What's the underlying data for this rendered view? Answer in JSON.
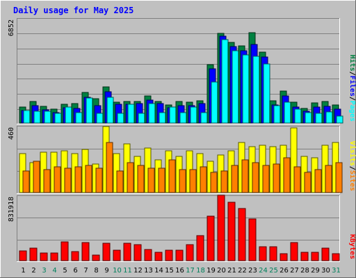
{
  "chart_data": {
    "type": "bar",
    "title": "Daily usage for May 2025",
    "categories": [
      "1",
      "2",
      "3",
      "4",
      "5",
      "6",
      "7",
      "8",
      "9",
      "10",
      "11",
      "12",
      "13",
      "14",
      "15",
      "16",
      "17",
      "18",
      "19",
      "20",
      "21",
      "22",
      "23",
      "24",
      "25",
      "26",
      "27",
      "28",
      "29",
      "30",
      "31"
    ],
    "weekend_days": [
      "3",
      "4",
      "10",
      "11",
      "17",
      "18",
      "24",
      "25",
      "31"
    ],
    "panels": [
      {
        "name": "top",
        "ymax_label": "6852",
        "ylim": [
          0,
          6852
        ],
        "legend": [
          "Pages",
          "Files",
          "Hits"
        ],
        "series": [
          {
            "name": "Hits",
            "color": "#008040",
            "values": [
              1050,
              1430,
              1080,
              900,
              1230,
              1290,
              2020,
              1580,
              2370,
              1380,
              1420,
              1430,
              1770,
              1400,
              1170,
              1430,
              1390,
              1480,
              3830,
              5900,
              5290,
              5080,
              5930,
              4680,
              1440,
              2120,
              1370,
              950,
              1340,
              1420,
              1200
            ]
          },
          {
            "name": "Files",
            "color": "#0000ff",
            "values": [
              820,
              1140,
              880,
              680,
              1000,
              980,
              1700,
              1160,
              2050,
              1220,
              1220,
              1280,
              1530,
              1260,
              1000,
              1150,
              1130,
              1270,
              3560,
              5720,
              5030,
              4760,
              5150,
              4360,
              1170,
              1790,
              1030,
              780,
              1060,
              1110,
              900
            ]
          },
          {
            "name": "Pages",
            "color": "#00ffff",
            "values": [
              820,
              770,
              770,
              660,
              1050,
              680,
              1660,
              650,
              1680,
              660,
              1220,
              660,
              1290,
              700,
              1040,
              700,
              1050,
              700,
              2690,
              5460,
              4760,
              4470,
              4370,
              3890,
              1130,
              1380,
              910,
              680,
              640,
              720,
              470
            ]
          }
        ]
      },
      {
        "name": "middle",
        "ymax_label": "460",
        "ylim": [
          0,
          460
        ],
        "legend": [
          "Sites",
          "Visits"
        ],
        "series": [
          {
            "name": "Visits",
            "color": "#ffff00",
            "values": [
              270,
              210,
              280,
              280,
              290,
              270,
              300,
              200,
              460,
              270,
              340,
              250,
              310,
              230,
              290,
              250,
              290,
              270,
              220,
              260,
              290,
              350,
              320,
              330,
              320,
              330,
              450,
              250,
              240,
              330,
              350
            ]
          },
          {
            "name": "Sites",
            "color": "#ff8000",
            "values": [
              150,
              220,
              160,
              180,
              170,
              180,
              190,
              170,
              350,
              150,
              210,
              190,
              170,
              170,
              230,
              160,
              160,
              180,
              140,
              150,
              190,
              230,
              210,
              190,
              200,
              240,
              180,
              140,
              160,
              190,
              210
            ]
          }
        ]
      },
      {
        "name": "bottom",
        "ymax_label": "831918",
        "ylim": [
          0,
          831918
        ],
        "legend": [
          "KBytes"
        ],
        "series": [
          {
            "name": "KBytes",
            "color": "#ff0000",
            "values": [
              128000,
              160000,
              100000,
              95000,
              240000,
              115000,
              230000,
              72000,
              220000,
              130000,
              225000,
              205000,
              140000,
              110000,
              135000,
              135000,
              208000,
              320000,
              575000,
              855000,
              750000,
              675000,
              535000,
              178000,
              175000,
              85000,
              230000,
              110000,
              110000,
              160000,
              90000
            ]
          }
        ]
      }
    ]
  },
  "colors": {
    "background": "#c0c0c0",
    "plot_background": "#c0c0c0",
    "title": "#0000ff",
    "gridline": "#808080",
    "weekday_label": "#000000",
    "weekend_label": "#00805c"
  }
}
